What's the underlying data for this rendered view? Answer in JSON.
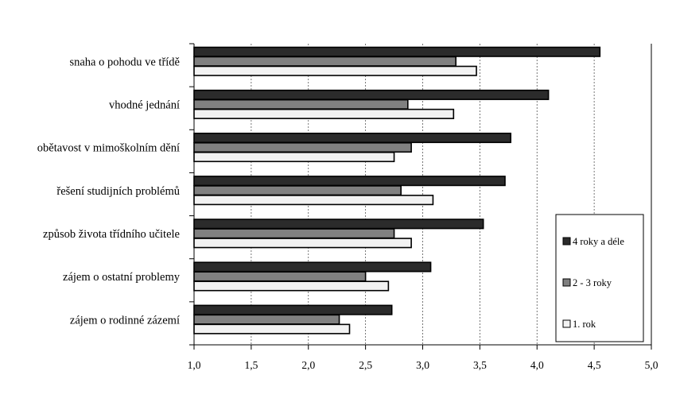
{
  "chart_data": {
    "type": "bar",
    "orientation": "horizontal",
    "categories": [
      "snaha o pohodu ve třídě",
      "vhodné jednání",
      "obětavost v mimoškolním dění",
      "řešení studijních problémů",
      "způsob života třídního učitele",
      "zájem o ostatní problemy",
      "zájem o rodinné zázemí"
    ],
    "series": [
      {
        "name": "4 roky a déle",
        "color": "#2b2b2b",
        "values": [
          4.55,
          4.1,
          3.77,
          3.72,
          3.53,
          3.07,
          2.73
        ]
      },
      {
        "name": "2 - 3 roky",
        "color": "#808080",
        "values": [
          3.29,
          2.87,
          2.9,
          2.81,
          2.75,
          2.5,
          2.27
        ]
      },
      {
        "name": "1. rok",
        "color": "#f2f2f2",
        "values": [
          3.47,
          3.27,
          2.75,
          3.09,
          2.9,
          2.7,
          2.36
        ]
      }
    ],
    "xlim": [
      1.0,
      5.0
    ],
    "x_ticks": [
      "1,0",
      "1,5",
      "2,0",
      "2,5",
      "3,0",
      "3,5",
      "4,0",
      "4,5",
      "5,0"
    ],
    "grid": "vertical dashed",
    "legend_placement": "bottom-right",
    "title": "",
    "xlabel": "",
    "ylabel": ""
  }
}
